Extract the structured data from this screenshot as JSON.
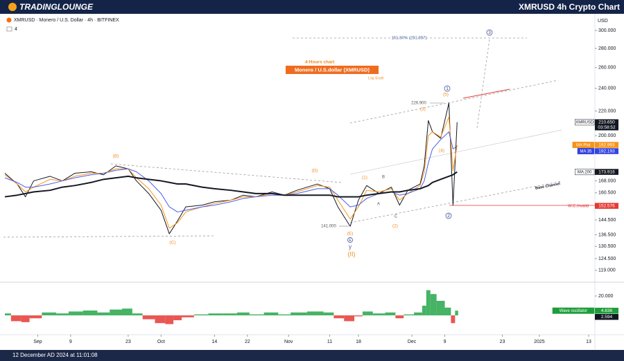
{
  "header": {
    "logo": "TRADINGLOUNGE",
    "title": "XMRUSD 4h Crypto Chart"
  },
  "footer": {
    "timestamp": "12 December AD 2024 at 11:01:08"
  },
  "chart_data": [
    {
      "type": "line",
      "title": "XMRUSD · Monero / U.S. Dollar · 4h · BITFINEX",
      "subtitle": "4",
      "y_axis_label": "USD",
      "log_scale": true,
      "grid": false,
      "x": [
        "2024-08-24",
        "2024-08-27",
        "2024-08-29",
        "2024-08-31",
        "2024-09-04",
        "2024-09-07",
        "2024-09-10",
        "2024-09-14",
        "2024-09-17",
        "2024-09-20",
        "2024-09-23",
        "2024-09-25",
        "2024-09-28",
        "2024-10-01",
        "2024-10-03",
        "2024-10-05",
        "2024-10-07",
        "2024-10-11",
        "2024-10-14",
        "2024-10-18",
        "2024-10-21",
        "2024-10-24",
        "2024-10-28",
        "2024-10-31",
        "2024-11-03",
        "2024-11-08",
        "2024-11-11",
        "2024-11-13",
        "2024-11-16",
        "2024-11-18",
        "2024-11-20",
        "2024-11-23",
        "2024-11-26",
        "2024-11-28",
        "2024-11-30",
        "2024-12-03",
        "2024-12-04",
        "2024-12-05",
        "2024-12-06",
        "2024-12-08",
        "2024-12-10",
        "2024-12-11",
        "2024-12-12"
      ],
      "xlim": [
        "2024-08-24",
        "2025-01-14"
      ],
      "ylim": [
        114.6,
        311.5
      ],
      "yticks": [
        {
          "value": 300,
          "label": "300.000"
        },
        {
          "value": 280,
          "label": "280.000"
        },
        {
          "value": 260,
          "label": "260.000"
        },
        {
          "value": 240,
          "label": "240.000"
        },
        {
          "value": 220,
          "label": "220.000"
        },
        {
          "value": 200,
          "label": "200.000"
        },
        {
          "value": 168,
          "label": "168.000"
        },
        {
          "value": 160.5,
          "label": "160.500"
        },
        {
          "value": 144.5,
          "label": "144.500"
        },
        {
          "value": 136.5,
          "label": "136.500"
        },
        {
          "value": 130.5,
          "label": "130.500"
        },
        {
          "value": 124.5,
          "label": "124.500"
        },
        {
          "value": 119,
          "label": "119.000"
        }
      ],
      "series": [
        {
          "color": "#131722",
          "width": 1,
          "values": [
            173,
            166,
            158,
            168,
            171,
            168,
            173,
            174,
            172,
            178,
            176,
            168,
            160,
            150,
            137,
            144,
            152,
            153,
            155,
            156,
            159,
            158,
            161,
            159,
            162,
            166,
            163,
            152,
            141,
            156,
            165,
            160,
            164,
            153,
            162,
            166,
            178,
            212,
            203,
            198,
            226.9,
            153,
            210.65
          ]
        },
        {
          "color": "#f7931a",
          "width": 1,
          "values": [
            172,
            166,
            161,
            164,
            169,
            168,
            171,
            173,
            173,
            176,
            176,
            170,
            163,
            153,
            140,
            143,
            149,
            152,
            154,
            156,
            158,
            158,
            160,
            159,
            161,
            165,
            164,
            156,
            145,
            152,
            162,
            161,
            163,
            156,
            160,
            165,
            174,
            200,
            203,
            199,
            215,
            175,
            192.993
          ]
        },
        {
          "color": "#4a5ce8",
          "width": 1,
          "values": [
            170,
            167,
            164,
            164,
            166,
            168,
            170,
            172,
            173,
            175,
            176,
            174,
            168,
            160,
            152,
            149,
            150,
            152,
            153,
            155,
            157,
            158,
            159,
            159,
            160,
            163,
            163,
            159,
            152,
            153,
            157,
            160,
            161,
            159,
            160,
            163,
            168,
            180,
            190,
            197,
            203,
            190,
            192.193
          ]
        },
        {
          "color": "#131722",
          "width": 2,
          "values": [
            158,
            159,
            160,
            161,
            162,
            164,
            165,
            167,
            169,
            170,
            171,
            170,
            169,
            168,
            167,
            166,
            166,
            164,
            163,
            162,
            161,
            160,
            160,
            159,
            159,
            159,
            159,
            158,
            158,
            158,
            159,
            160,
            161,
            161,
            162,
            163,
            164,
            165,
            167,
            169,
            171,
            172,
            173.916
          ]
        }
      ],
      "badges": [
        {
          "name": "XMRUSD",
          "value": 210.65,
          "label": "210.650",
          "timer": "03:58:52",
          "color": "#131722",
          "name_fill": "#ffffff"
        },
        {
          "name": "MA Plot",
          "value": 192.993,
          "label": "192.993",
          "color": "#f7931a",
          "name_fill": "#f7931a"
        },
        {
          "name": "MA 35",
          "value": 192.193,
          "label": "192.193",
          "color": "#3344dd",
          "name_fill": "#3344dd"
        },
        {
          "name": "MA:200",
          "value": 173.916,
          "label": "173.916",
          "color": "#131722",
          "name_fill": "#ffffff"
        },
        {
          "name": "W.C.Invalid",
          "value": 152.576,
          "label": "152.576",
          "color": "#e53935"
        }
      ],
      "annotations": [
        "4-Hours chart",
        "Monero / U.S.dollar (XMRUSD)",
        "Log-Scale",
        "161.80% (291.857)",
        "226.900",
        "141.000",
        "(B)",
        "(C)",
        "(D)",
        "(E)",
        "y",
        "(II)",
        "(1)",
        "(2)",
        "(3)",
        "(4)",
        "(5)",
        "A",
        "B",
        "C",
        "1",
        "2",
        "3",
        "Base Channel",
        "E"
      ]
    },
    {
      "type": "bar",
      "positive_color": "#26a64a",
      "negative_color": "#e53935",
      "x": [
        "2024-08-24",
        "2024-08-27",
        "2024-08-29",
        "2024-08-31",
        "2024-09-04",
        "2024-09-07",
        "2024-09-10",
        "2024-09-14",
        "2024-09-17",
        "2024-09-20",
        "2024-09-23",
        "2024-09-25",
        "2024-09-28",
        "2024-10-01",
        "2024-10-03",
        "2024-10-05",
        "2024-10-07",
        "2024-10-11",
        "2024-10-14",
        "2024-10-18",
        "2024-10-21",
        "2024-10-24",
        "2024-10-28",
        "2024-10-31",
        "2024-11-03",
        "2024-11-08",
        "2024-11-11",
        "2024-11-13",
        "2024-11-16",
        "2024-11-18",
        "2024-11-20",
        "2024-11-23",
        "2024-11-26",
        "2024-11-28",
        "2024-11-30",
        "2024-12-03",
        "2024-12-04",
        "2024-12-05",
        "2024-12-06",
        "2024-12-08",
        "2024-12-10",
        "2024-12-11",
        "2024-12-12"
      ],
      "values": [
        2,
        -6,
        -7,
        -3,
        3,
        2,
        4,
        5,
        3,
        6,
        7,
        2,
        -4,
        -8,
        -9,
        -5,
        -2,
        1,
        2,
        2,
        3,
        1,
        3,
        1,
        3,
        4,
        3,
        -3,
        -6,
        -1,
        4,
        2,
        3,
        -3,
        1,
        3,
        10,
        26,
        22,
        15,
        8,
        -8,
        4.836
      ],
      "xlim": [
        "2024-08-24",
        "2025-01-14"
      ],
      "xticks": [
        {
          "value": "2024-09-01",
          "label": "Sep"
        },
        {
          "value": "2024-09-09",
          "label": "9"
        },
        {
          "value": "2024-09-23",
          "label": "23"
        },
        {
          "value": "2024-10-01",
          "label": "Oct"
        },
        {
          "value": "2024-10-14",
          "label": "14"
        },
        {
          "value": "2024-10-22",
          "label": "22"
        },
        {
          "value": "2024-11-01",
          "label": "Nov"
        },
        {
          "value": "2024-11-11",
          "label": "11"
        },
        {
          "value": "2024-11-18",
          "label": "18"
        },
        {
          "value": "2024-12-01",
          "label": "Dec"
        },
        {
          "value": "2024-12-09",
          "label": "9"
        },
        {
          "value": "2024-12-23",
          "label": "23"
        },
        {
          "value": "2025-01-01",
          "label": "2025"
        },
        {
          "value": "2025-01-13",
          "label": "13"
        }
      ],
      "ylim": [
        -17.1,
        31.4
      ],
      "yticks": [
        {
          "value": 20,
          "label": "20.000"
        }
      ],
      "badges": [
        {
          "name": "Wave oscillator",
          "value": 4.836,
          "label": "4.836",
          "color": "#1e9e3a",
          "name_fill": "#1e9e3a"
        },
        {
          "value": 2.594,
          "label": "2.594",
          "color": "#131722"
        }
      ]
    }
  ]
}
